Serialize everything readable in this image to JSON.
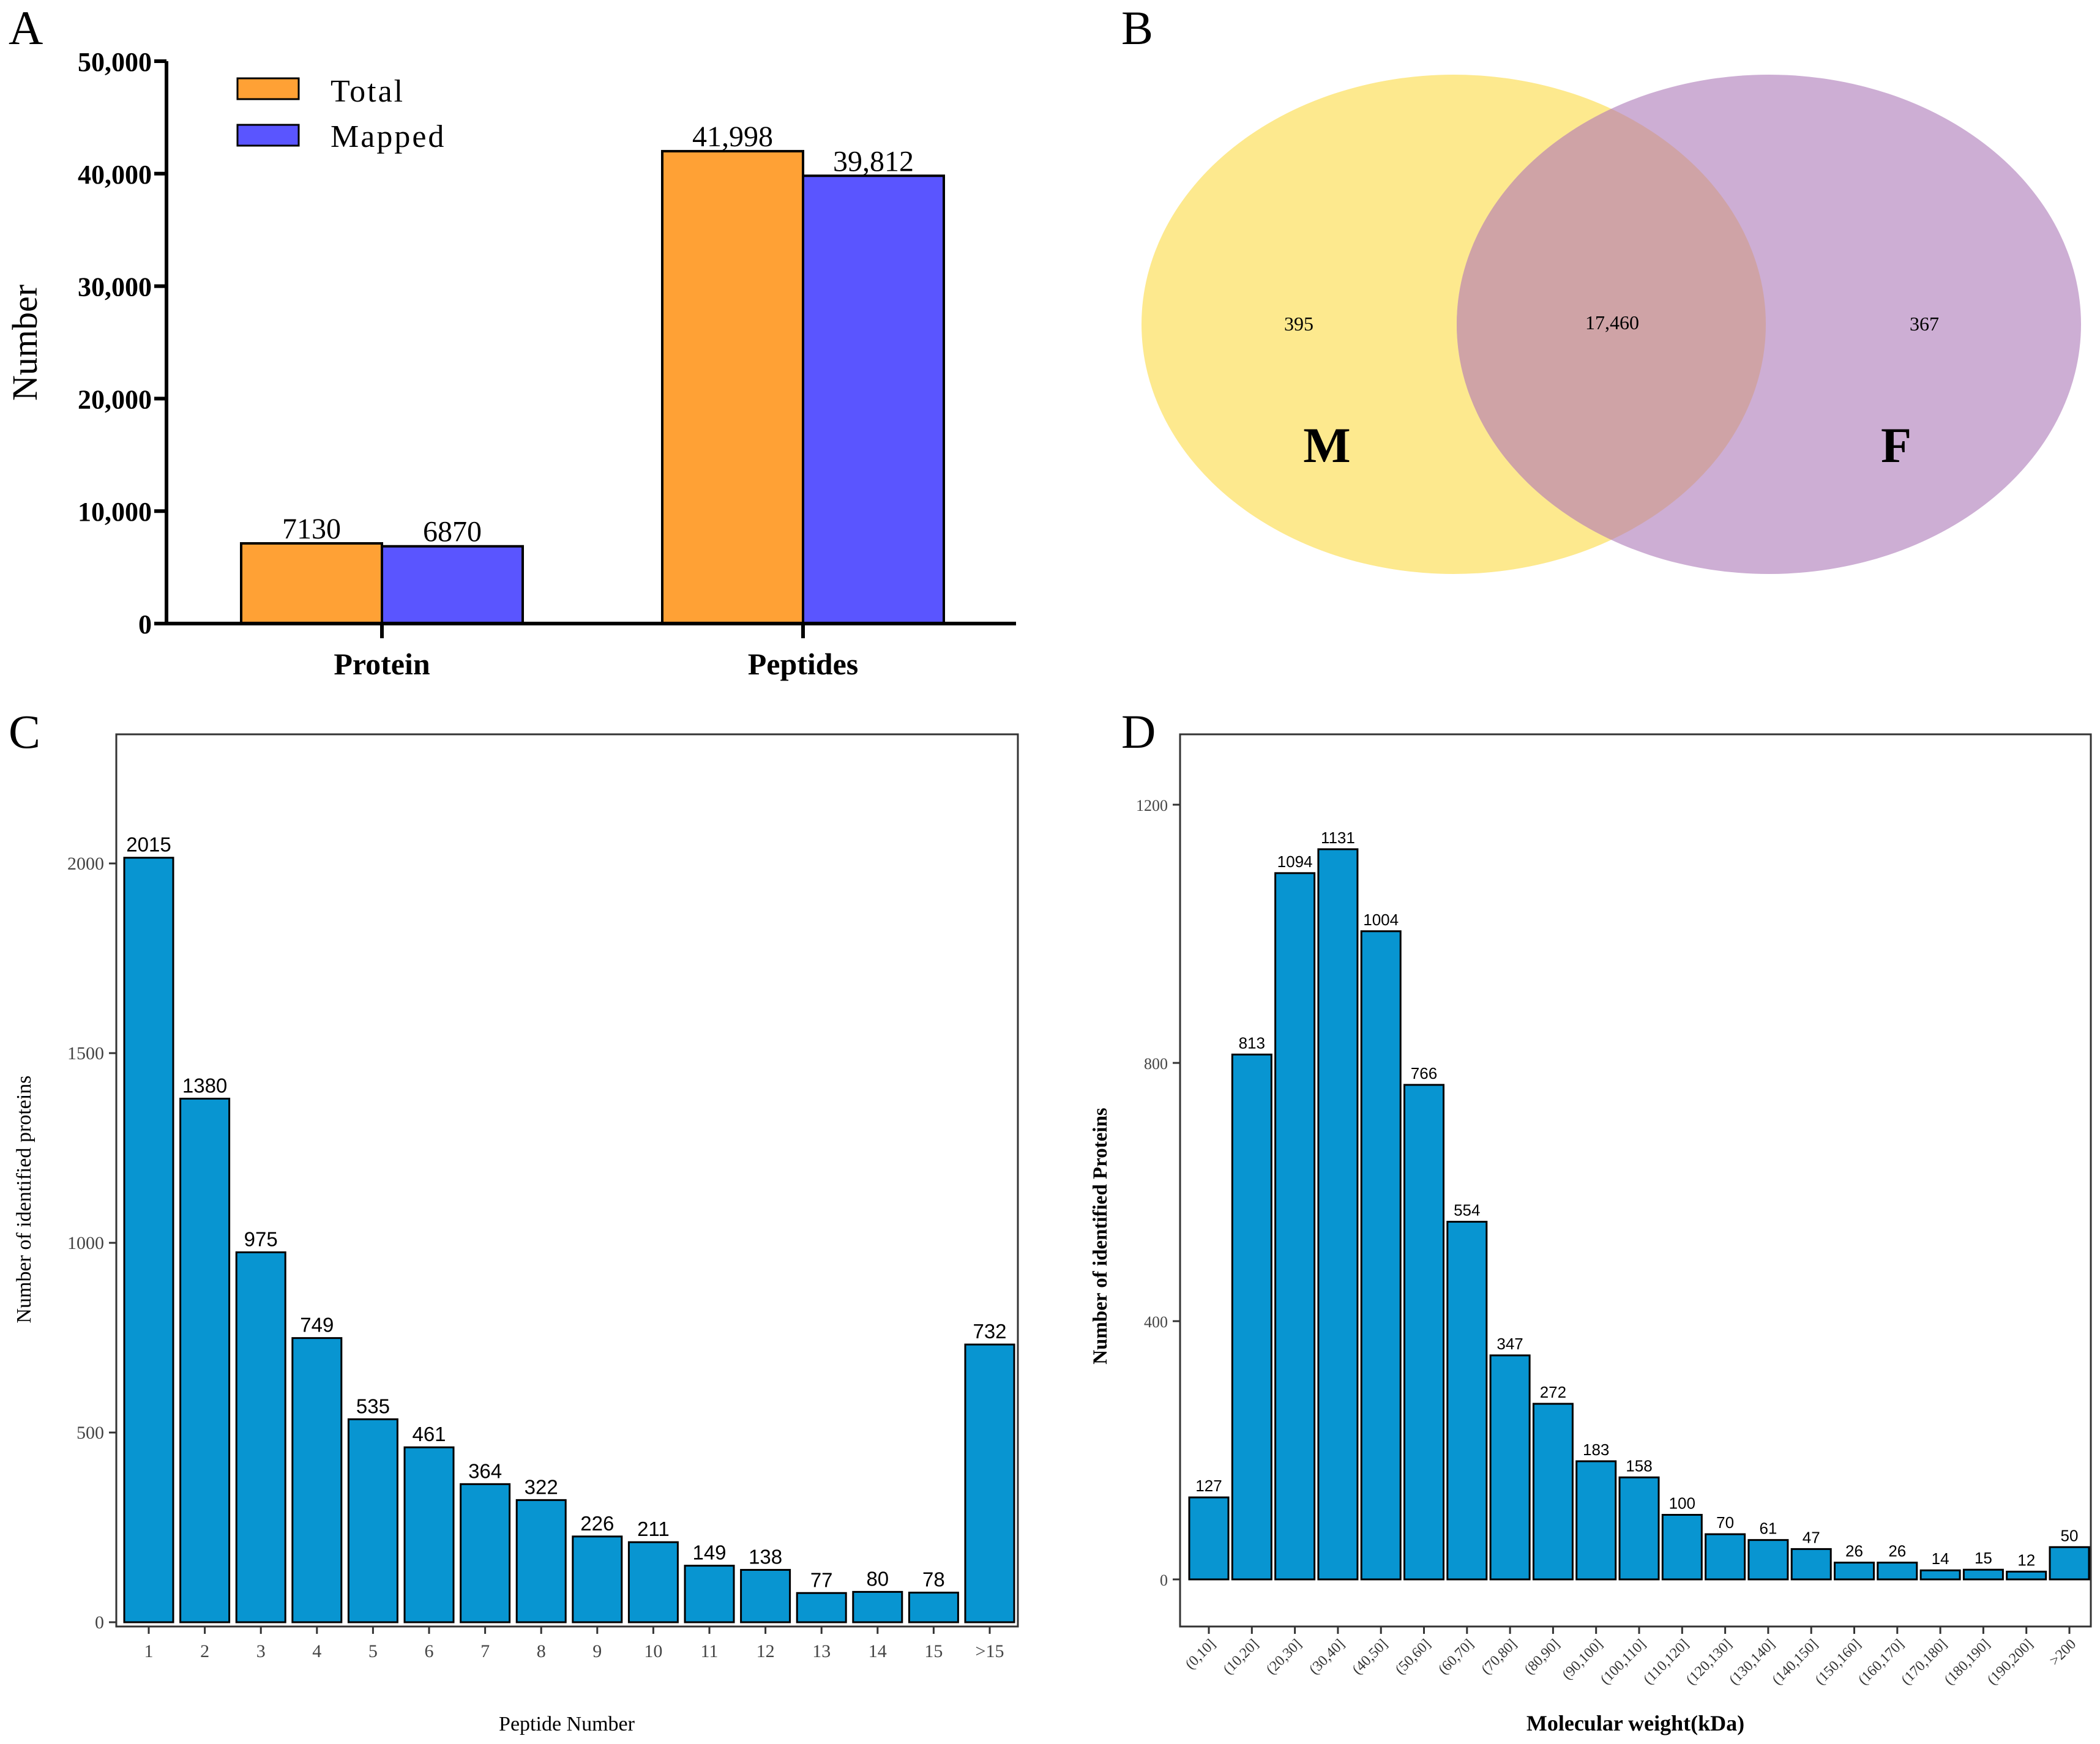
{
  "panels": {
    "a": "A",
    "b": "B",
    "c": "C",
    "d": "D"
  },
  "colors": {
    "total": "#ffa135",
    "mapped": "#5a55ff",
    "bar": "#0895d1",
    "venn_m": "#fde98e",
    "venn_f": "#cdaed4",
    "venn_overlap": "#cfa3a6"
  },
  "chart_data": [
    {
      "id": "A",
      "type": "bar",
      "title": "",
      "xlabel": "",
      "ylabel": "Number",
      "categories": [
        "Protein",
        "Peptides"
      ],
      "series": [
        {
          "name": "Total",
          "values": [
            7130,
            41998
          ],
          "labels": [
            "7130",
            "41,998"
          ]
        },
        {
          "name": "Mapped",
          "values": [
            6870,
            39812
          ],
          "labels": [
            "6870",
            "39,812"
          ]
        }
      ],
      "ylim": [
        0,
        50000
      ],
      "yticks": [
        0,
        10000,
        20000,
        30000,
        40000,
        50000
      ],
      "ytick_labels": [
        "0",
        "10,000",
        "20,000",
        "30,000",
        "40,000",
        "50,000"
      ],
      "legend": "top-left"
    },
    {
      "id": "B",
      "type": "venn",
      "sets": [
        {
          "name": "M",
          "only": "395"
        },
        {
          "name": "F",
          "only": "367"
        }
      ],
      "overlap": "17,460"
    },
    {
      "id": "C",
      "type": "bar",
      "title": "",
      "xlabel": "Peptide Number",
      "ylabel": "Number of identified proteins",
      "categories": [
        "1",
        "2",
        "3",
        "4",
        "5",
        "6",
        "7",
        "8",
        "9",
        "10",
        "11",
        "12",
        "13",
        "14",
        "15",
        ">15"
      ],
      "values": [
        2015,
        1380,
        975,
        749,
        535,
        461,
        364,
        322,
        226,
        211,
        149,
        138,
        77,
        80,
        78,
        732
      ],
      "ylim": [
        -80,
        2350
      ],
      "yticks": [
        0,
        500,
        1000,
        1500,
        2000
      ],
      "grid": false
    },
    {
      "id": "D",
      "type": "bar",
      "title": "",
      "xlabel": "Molecular weight(kDa)",
      "ylabel": "Number of identified Proteins",
      "categories": [
        "(0,10]",
        "(10,20]",
        "(20,30]",
        "(30,40]",
        "(40,50]",
        "(50,60]",
        "(60,70]",
        "(70,80]",
        "(80,90]",
        "(90,100]",
        "(100,110]",
        "(110,120]",
        "(120,130]",
        "(130,140]",
        "(140,150]",
        "(150,160]",
        "(160,170]",
        "(170,180]",
        "(180,190]",
        "(190,200]",
        ">200"
      ],
      "values": [
        127,
        813,
        1094,
        1131,
        1004,
        766,
        554,
        347,
        272,
        183,
        158,
        100,
        70,
        61,
        47,
        26,
        26,
        14,
        15,
        12,
        50
      ],
      "ylim": [
        -60,
        1310
      ],
      "yticks": [
        0,
        400,
        800,
        1200
      ],
      "grid": false
    }
  ]
}
